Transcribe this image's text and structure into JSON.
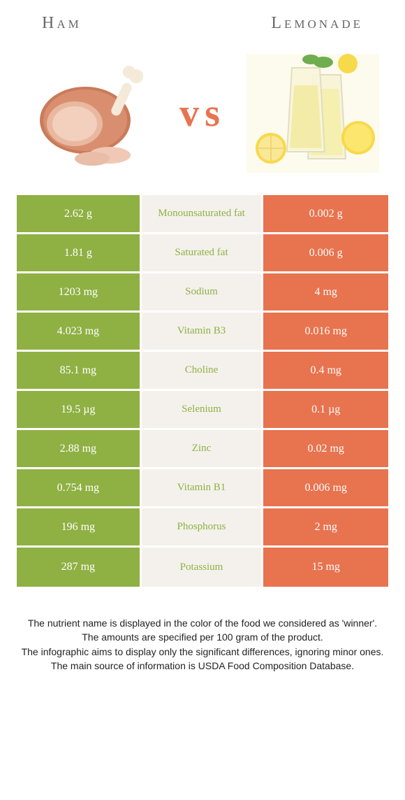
{
  "colors": {
    "ham": "#8fb043",
    "lemonade": "#e8734f",
    "mid_bg": "#f4f1ec",
    "vs_text": "#e8734f",
    "title_text": "#666666"
  },
  "header": {
    "left": "Ham",
    "right": "Lemonade",
    "vs": "vs"
  },
  "rows": [
    {
      "left": "2.62 g",
      "label": "Monounsaturated fat",
      "right": "0.002 g",
      "winner": "ham"
    },
    {
      "left": "1.81 g",
      "label": "Saturated fat",
      "right": "0.006 g",
      "winner": "ham"
    },
    {
      "left": "1203 mg",
      "label": "Sodium",
      "right": "4 mg",
      "winner": "ham"
    },
    {
      "left": "4.023 mg",
      "label": "Vitamin B3",
      "right": "0.016 mg",
      "winner": "ham"
    },
    {
      "left": "85.1 mg",
      "label": "Choline",
      "right": "0.4 mg",
      "winner": "ham"
    },
    {
      "left": "19.5 µg",
      "label": "Selenium",
      "right": "0.1 µg",
      "winner": "ham"
    },
    {
      "left": "2.88 mg",
      "label": "Zinc",
      "right": "0.02 mg",
      "winner": "ham"
    },
    {
      "left": "0.754 mg",
      "label": "Vitamin B1",
      "right": "0.006 mg",
      "winner": "ham"
    },
    {
      "left": "196 mg",
      "label": "Phosphorus",
      "right": "2 mg",
      "winner": "ham"
    },
    {
      "left": "287 mg",
      "label": "Potassium",
      "right": "15 mg",
      "winner": "ham"
    }
  ],
  "footer": {
    "l1": "The nutrient name is displayed in the color of the food we considered as 'winner'.",
    "l2": "The amounts are specified per 100 gram of the product.",
    "l3": "The infographic aims to display only the significant differences, ignoring minor ones.",
    "l4": "The main source of information is USDA Food Composition Database."
  }
}
